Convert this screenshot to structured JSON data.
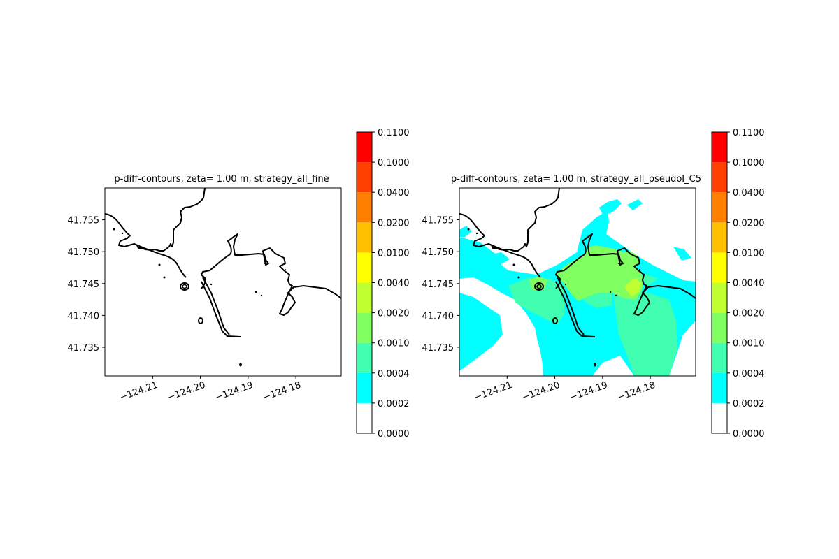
{
  "colorbar": {
    "levels": [
      "0.0000",
      "0.0002",
      "0.0004",
      "0.0010",
      "0.0020",
      "0.0040",
      "0.0100",
      "0.0200",
      "0.0400",
      "0.1000",
      "0.1100"
    ],
    "colors": [
      "#ffffff",
      "#00ffff",
      "#40ffb0",
      "#80ff60",
      "#c0ff30",
      "#ffff00",
      "#ffc000",
      "#ff8000",
      "#ff4000",
      "#ff0000"
    ]
  },
  "chart_data": [
    {
      "type": "heatmap",
      "title": "p-diff-contours, zeta= 1.00 m, strategy_all_fine",
      "xticks": [
        "−124.21",
        "−124.20",
        "−124.19",
        "−124.18"
      ],
      "yticks": [
        "41.735",
        "41.740",
        "41.745",
        "41.750",
        "41.755"
      ],
      "xlim": [
        -124.22,
        -124.1705
      ],
      "ylim": [
        41.7305,
        41.76
      ],
      "filled_regions": []
    },
    {
      "type": "heatmap",
      "title": "p-diff-contours, zeta= 1.00 m, strategy_all_pseudoI_C5",
      "xticks": [
        "−124.21",
        "−124.20",
        "−124.19",
        "−124.18"
      ],
      "yticks": [
        "41.735",
        "41.740",
        "41.745",
        "41.750",
        "41.755"
      ],
      "xlim": [
        -124.22,
        -124.1705
      ],
      "ylim": [
        41.7305,
        41.76
      ],
      "filled_regions": [
        {
          "level": "0.0002-0.0004",
          "extent": "widespread patches over the water area"
        },
        {
          "level": "0.0004-0.0010",
          "extent": "band around the bay and south-east"
        },
        {
          "level": "0.0010-0.0020",
          "extent": "central bay interior"
        },
        {
          "level": "0.0020-0.0040",
          "extent": "small area near the east inlet"
        }
      ]
    }
  ]
}
